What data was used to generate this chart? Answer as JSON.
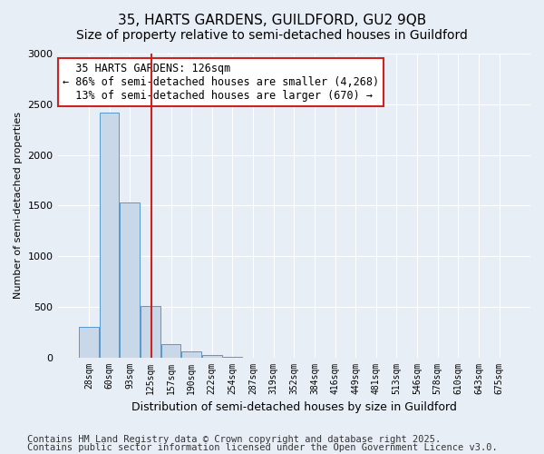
{
  "title_line1": "35, HARTS GARDENS, GUILDFORD, GU2 9QB",
  "title_line2": "Size of property relative to semi-detached houses in Guildford",
  "xlabel": "Distribution of semi-detached houses by size in Guildford",
  "ylabel": "Number of semi-detached properties",
  "footer_line1": "Contains HM Land Registry data © Crown copyright and database right 2025.",
  "footer_line2": "Contains public sector information licensed under the Open Government Licence v3.0.",
  "bins": [
    "28sqm",
    "60sqm",
    "93sqm",
    "125sqm",
    "157sqm",
    "190sqm",
    "222sqm",
    "254sqm",
    "287sqm",
    "319sqm",
    "352sqm",
    "384sqm",
    "416sqm",
    "449sqm",
    "481sqm",
    "513sqm",
    "546sqm",
    "578sqm",
    "610sqm",
    "643sqm",
    "675sqm"
  ],
  "values": [
    300,
    2420,
    1530,
    510,
    130,
    60,
    25,
    5,
    0,
    0,
    0,
    0,
    0,
    0,
    0,
    0,
    0,
    0,
    0,
    0,
    0
  ],
  "bar_color": "#c8d8e8",
  "bar_edge_color": "#5599cc",
  "property_size": 126,
  "property_label": "35 HARTS GARDENS: 126sqm",
  "pct_smaller": 86,
  "count_smaller": 4268,
  "pct_larger": 13,
  "count_larger": 670,
  "vline_color": "#cc2222",
  "annotation_box_color": "#cc2222",
  "ylim": [
    0,
    3000
  ],
  "yticks": [
    0,
    500,
    1000,
    1500,
    2000,
    2500,
    3000
  ],
  "background_color": "#e8eef5",
  "plot_background": "#e8eef5",
  "grid_color": "#ffffff",
  "title_fontsize": 11,
  "subtitle_fontsize": 10,
  "annotation_fontsize": 8.5,
  "footer_fontsize": 7.5
}
